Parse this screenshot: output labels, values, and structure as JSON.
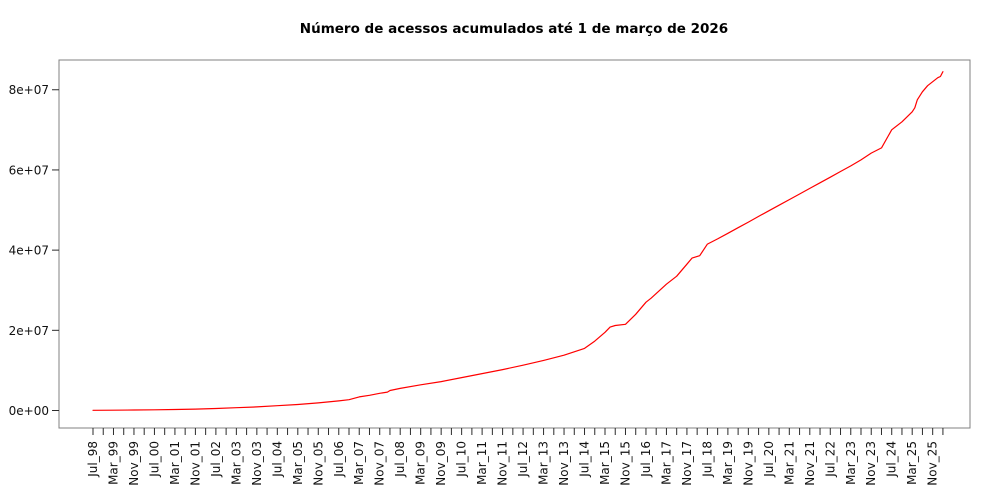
{
  "figure": {
    "background": "#ffffff",
    "line_color": "#ff0000",
    "box_color": "#808080",
    "tick_color": "#2b2b2b",
    "text_color": "#111111"
  },
  "chart_data": {
    "type": "line",
    "title": "Número de acessos acumulados até 1 de março de 2026",
    "xlabel": "",
    "ylabel": "",
    "grid": false,
    "legend": null,
    "x_axis": {
      "start": "1998-07",
      "end": "2026-03",
      "minor_tick_every_months": 4,
      "labeled_tick_every_months": 8,
      "tick_labels": [
        "Jul_98",
        "Mar_99",
        "Nov_99",
        "Jul_00",
        "Mar_01",
        "Nov_01",
        "Jul_02",
        "Mar_03",
        "Nov_03",
        "Jul_04",
        "Mar_05",
        "Nov_05",
        "Jul_06",
        "Mar_07",
        "Nov_07",
        "Jul_08",
        "Mar_09",
        "Nov_09",
        "Jul_10",
        "Mar_11",
        "Nov_11",
        "Jul_12",
        "Mar_13",
        "Nov_13",
        "Jul_14",
        "Mar_15",
        "Nov_15",
        "Jul_16",
        "Mar_17",
        "Nov_17",
        "Jul_18",
        "Mar_19",
        "Nov_19",
        "Jul_20",
        "Mar_21",
        "Nov_21",
        "Jul_22",
        "Mar_23",
        "Nov_23",
        "Jul_24",
        "Mar_25",
        "Nov_25"
      ]
    },
    "y_axis": {
      "tick_labels": [
        "0e+00",
        "2e+07",
        "4e+07",
        "6e+07",
        "8e+07"
      ],
      "tick_values": [
        0,
        20000000,
        40000000,
        60000000,
        80000000
      ],
      "range": [
        0,
        84500000
      ]
    },
    "series": [
      {
        "name": "acessos acumulados",
        "color": "#ff0000",
        "points": [
          [
            "1998-07",
            50000
          ],
          [
            "1999-03",
            80000
          ],
          [
            "1999-11",
            120000
          ],
          [
            "2000-07",
            180000
          ],
          [
            "2001-03",
            250000
          ],
          [
            "2001-11",
            350000
          ],
          [
            "2002-07",
            500000
          ],
          [
            "2003-03",
            700000
          ],
          [
            "2003-11",
            900000
          ],
          [
            "2004-07",
            1200000
          ],
          [
            "2005-03",
            1500000
          ],
          [
            "2005-11",
            1900000
          ],
          [
            "2006-07",
            2400000
          ],
          [
            "2006-11",
            2700000
          ],
          [
            "2007-03",
            3400000
          ],
          [
            "2007-07",
            3800000
          ],
          [
            "2007-11",
            4300000
          ],
          [
            "2008-02",
            4600000
          ],
          [
            "2008-03",
            5000000
          ],
          [
            "2008-07",
            5500000
          ],
          [
            "2009-03",
            6400000
          ],
          [
            "2009-11",
            7200000
          ],
          [
            "2010-07",
            8200000
          ],
          [
            "2011-03",
            9200000
          ],
          [
            "2011-11",
            10200000
          ],
          [
            "2012-07",
            11300000
          ],
          [
            "2013-03",
            12500000
          ],
          [
            "2013-11",
            13800000
          ],
          [
            "2014-07",
            15500000
          ],
          [
            "2014-11",
            17300000
          ],
          [
            "2015-03",
            19500000
          ],
          [
            "2015-05",
            20800000
          ],
          [
            "2015-07",
            21200000
          ],
          [
            "2015-11",
            21500000
          ],
          [
            "2016-03",
            24000000
          ],
          [
            "2016-07",
            27000000
          ],
          [
            "2016-09",
            28000000
          ],
          [
            "2017-03",
            31500000
          ],
          [
            "2017-07",
            33500000
          ],
          [
            "2017-11",
            36500000
          ],
          [
            "2018-01",
            38000000
          ],
          [
            "2018-04",
            38600000
          ],
          [
            "2018-07",
            41500000
          ],
          [
            "2018-11",
            42800000
          ],
          [
            "2019-03",
            44200000
          ],
          [
            "2019-07",
            45600000
          ],
          [
            "2019-11",
            47000000
          ],
          [
            "2020-03",
            48400000
          ],
          [
            "2020-07",
            49800000
          ],
          [
            "2020-11",
            51200000
          ],
          [
            "2021-03",
            52600000
          ],
          [
            "2021-07",
            54000000
          ],
          [
            "2021-11",
            55400000
          ],
          [
            "2022-03",
            56800000
          ],
          [
            "2022-07",
            58200000
          ],
          [
            "2022-11",
            59600000
          ],
          [
            "2023-03",
            61000000
          ],
          [
            "2023-07",
            62500000
          ],
          [
            "2023-11",
            64200000
          ],
          [
            "2024-03",
            65500000
          ],
          [
            "2024-07",
            70000000
          ],
          [
            "2024-11",
            72000000
          ],
          [
            "2025-03",
            74500000
          ],
          [
            "2025-04",
            75500000
          ],
          [
            "2025-05",
            77500000
          ],
          [
            "2025-07",
            79500000
          ],
          [
            "2025-09",
            81000000
          ],
          [
            "2025-11",
            82000000
          ],
          [
            "2026-01",
            83000000
          ],
          [
            "2026-02",
            83300000
          ],
          [
            "2026-03",
            84500000
          ]
        ]
      }
    ]
  }
}
